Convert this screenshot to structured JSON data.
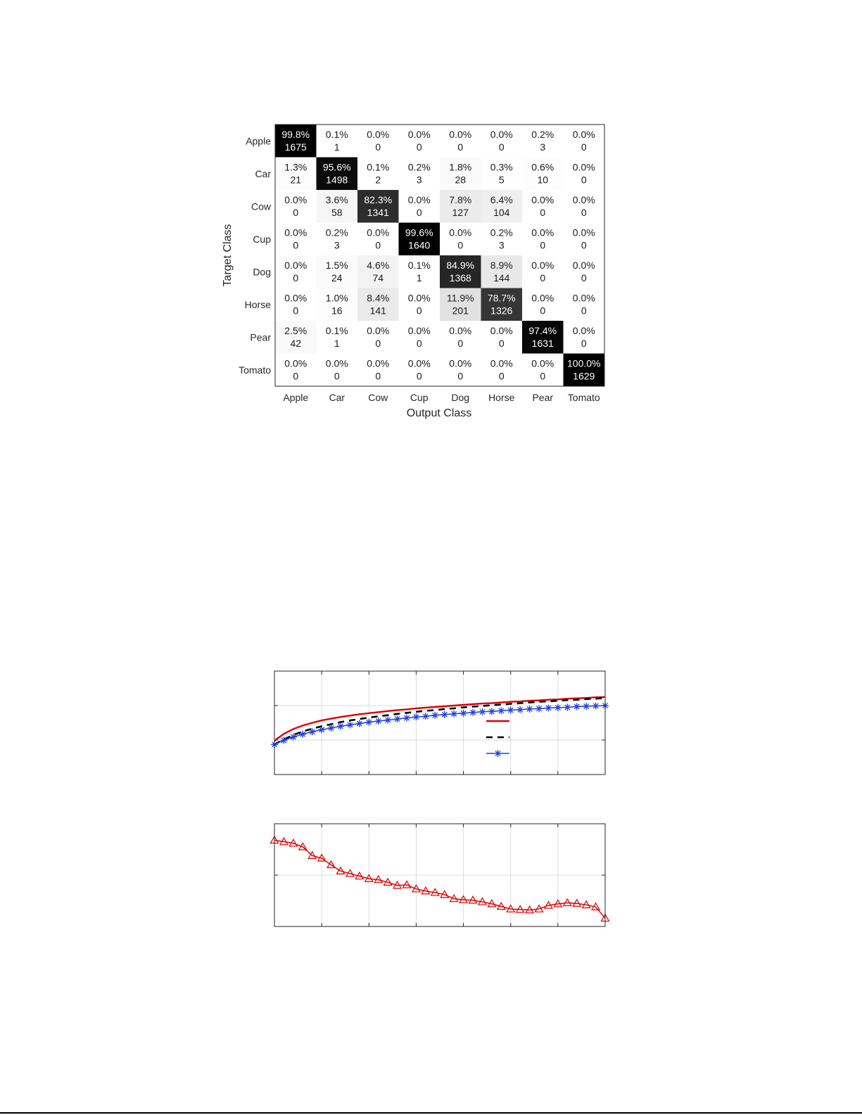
{
  "chart_data": [
    {
      "type": "heatmap",
      "title": "",
      "xlabel": "Output Class",
      "ylabel": "Target Class",
      "x_categories": [
        "Apple",
        "Car",
        "Cow",
        "Cup",
        "Dog",
        "Horse",
        "Pear",
        "Tomato"
      ],
      "y_categories": [
        "Apple",
        "Car",
        "Cow",
        "Cup",
        "Dog",
        "Horse",
        "Pear",
        "Tomato"
      ],
      "percent": [
        [
          "99.8%",
          "0.1%",
          "0.0%",
          "0.0%",
          "0.0%",
          "0.0%",
          "0.2%",
          "0.0%"
        ],
        [
          "1.3%",
          "95.6%",
          "0.1%",
          "0.2%",
          "1.8%",
          "0.3%",
          "0.6%",
          "0.0%"
        ],
        [
          "0.0%",
          "3.6%",
          "82.3%",
          "0.0%",
          "7.8%",
          "6.4%",
          "0.0%",
          "0.0%"
        ],
        [
          "0.0%",
          "0.2%",
          "0.0%",
          "99.6%",
          "0.0%",
          "0.2%",
          "0.0%",
          "0.0%"
        ],
        [
          "0.0%",
          "1.5%",
          "4.6%",
          "0.1%",
          "84.9%",
          "8.9%",
          "0.0%",
          "0.0%"
        ],
        [
          "0.0%",
          "1.0%",
          "8.4%",
          "0.0%",
          "11.9%",
          "78.7%",
          "0.0%",
          "0.0%"
        ],
        [
          "2.5%",
          "0.1%",
          "0.0%",
          "0.0%",
          "0.0%",
          "0.0%",
          "97.4%",
          "0.0%"
        ],
        [
          "0.0%",
          "0.0%",
          "0.0%",
          "0.0%",
          "0.0%",
          "0.0%",
          "0.0%",
          "100.0%"
        ]
      ],
      "counts": [
        [
          1675,
          1,
          0,
          0,
          0,
          0,
          3,
          0
        ],
        [
          21,
          1498,
          2,
          3,
          28,
          5,
          10,
          0
        ],
        [
          0,
          58,
          1341,
          0,
          127,
          104,
          0,
          0
        ],
        [
          0,
          3,
          0,
          1640,
          0,
          3,
          0,
          0
        ],
        [
          0,
          24,
          74,
          1,
          1368,
          144,
          0,
          0
        ],
        [
          0,
          16,
          141,
          0,
          201,
          1326,
          0,
          0
        ],
        [
          42,
          1,
          0,
          0,
          0,
          0,
          1631,
          0
        ],
        [
          0,
          0,
          0,
          0,
          0,
          0,
          0,
          1629
        ]
      ]
    },
    {
      "type": "line",
      "title": "",
      "xlabel": "",
      "ylabel": "",
      "grid": true,
      "xlim": [
        0,
        35
      ],
      "ylim": [
        0,
        3
      ],
      "legend": "inside, center-right",
      "series": [
        {
          "color": "#dd0000",
          "style": "solid",
          "marker": "none",
          "values": [
            0.98,
            1.18,
            1.32,
            1.42,
            1.5,
            1.57,
            1.62,
            1.67,
            1.71,
            1.75,
            1.78,
            1.81,
            1.84,
            1.87,
            1.89,
            1.92,
            1.94,
            1.96,
            1.98,
            2.0,
            2.02,
            2.04,
            2.06,
            2.07,
            2.09,
            2.11,
            2.12,
            2.14,
            2.15,
            2.17,
            2.18,
            2.2,
            2.21,
            2.22,
            2.24,
            2.25
          ]
        },
        {
          "color": "#000000",
          "style": "dashed",
          "marker": "none",
          "values": [
            0.87,
            1.02,
            1.15,
            1.25,
            1.33,
            1.4,
            1.46,
            1.52,
            1.57,
            1.61,
            1.65,
            1.69,
            1.72,
            1.76,
            1.79,
            1.82,
            1.85,
            1.87,
            1.9,
            1.92,
            1.95,
            1.97,
            1.99,
            2.01,
            2.03,
            2.05,
            2.07,
            2.09,
            2.11,
            2.12,
            2.14,
            2.16,
            2.17,
            2.19,
            2.2,
            2.22
          ]
        },
        {
          "color": "#1f3fe6",
          "style": "solid",
          "marker": "asterisk",
          "values": [
            0.87,
            0.99,
            1.09,
            1.17,
            1.24,
            1.3,
            1.35,
            1.4,
            1.44,
            1.48,
            1.52,
            1.55,
            1.58,
            1.61,
            1.64,
            1.67,
            1.69,
            1.72,
            1.74,
            1.76,
            1.78,
            1.8,
            1.82,
            1.83,
            1.85,
            1.87,
            1.88,
            1.9,
            1.91,
            1.93,
            1.94,
            1.95,
            1.97,
            1.98,
            1.99,
            2.0
          ]
        }
      ]
    },
    {
      "type": "line",
      "title": "",
      "xlabel": "",
      "ylabel": "",
      "grid": true,
      "xlim": [
        0,
        35
      ],
      "ylim": [
        0,
        2
      ],
      "series": [
        {
          "color": "#dd0000",
          "style": "solid",
          "marker": "triangle",
          "values": [
            1.68,
            1.65,
            1.62,
            1.55,
            1.38,
            1.33,
            1.2,
            1.08,
            1.03,
            0.98,
            0.93,
            0.91,
            0.86,
            0.8,
            0.81,
            0.73,
            0.69,
            0.66,
            0.62,
            0.54,
            0.52,
            0.51,
            0.48,
            0.44,
            0.39,
            0.34,
            0.33,
            0.32,
            0.34,
            0.41,
            0.44,
            0.46,
            0.45,
            0.42,
            0.38,
            0.16
          ]
        }
      ]
    }
  ]
}
